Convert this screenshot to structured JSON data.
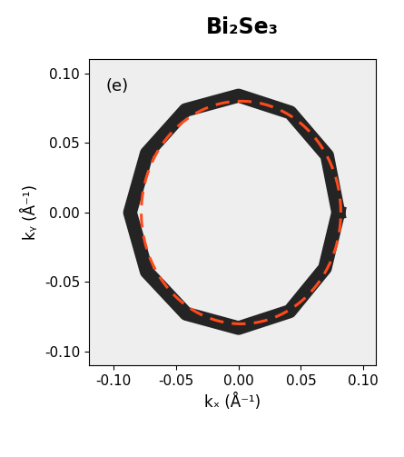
{
  "chart_data": {
    "type": "fermi_surface_map",
    "title": "Bi₂Se₃",
    "panel_label": "(e)",
    "x_label": "kₓ (Å⁻¹)",
    "y_label": "kᵧ (Å⁻¹)",
    "xlim": [
      -0.12,
      0.11
    ],
    "ylim": [
      -0.11,
      0.11
    ],
    "xticks": [
      {
        "value": -0.1,
        "label": "-0.10"
      },
      {
        "value": -0.05,
        "label": "-0.05"
      },
      {
        "value": 0,
        "label": "0.00"
      },
      {
        "value": 0.05,
        "label": "0.05"
      },
      {
        "value": 0.1,
        "label": "0.10"
      }
    ],
    "yticks": [
      {
        "value": -0.1,
        "label": "-0.10"
      },
      {
        "value": -0.05,
        "label": "-0.05"
      },
      {
        "value": 0,
        "label": "0.00"
      },
      {
        "value": 0.05,
        "label": "0.05"
      },
      {
        "value": 0.1,
        "label": "0.10"
      }
    ],
    "ring": {
      "center": [
        0,
        0
      ],
      "angles": [
        0,
        30,
        60,
        90,
        120,
        150,
        180,
        210,
        240,
        270,
        300,
        330
      ],
      "radii": [
        0.08,
        0.082,
        0.083,
        0.084,
        0.085,
        0.085,
        0.087,
        0.085,
        0.084,
        0.083,
        0.082,
        0.08
      ],
      "color": "#000000"
    },
    "fit": {
      "center": [
        0.002,
        0
      ],
      "radius": 0.08,
      "color": "#ff4a1c",
      "line_style": "dashed"
    },
    "grid": false
  }
}
